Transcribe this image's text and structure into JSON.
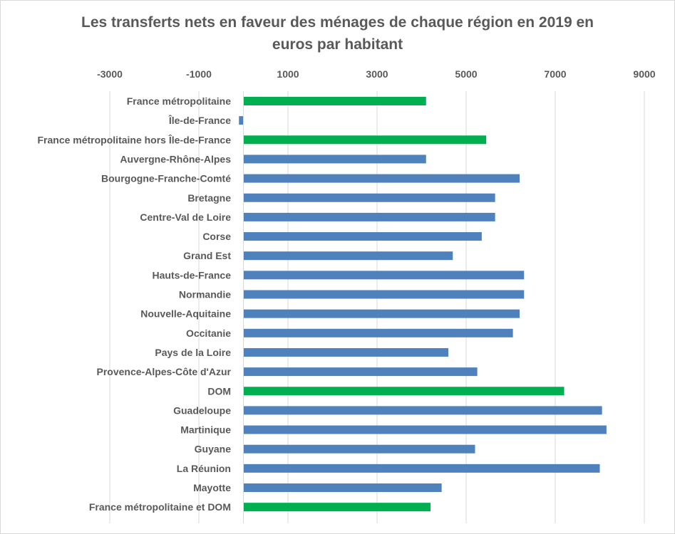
{
  "chart_data": {
    "type": "bar",
    "orientation": "horizontal",
    "title_lines": [
      "Les transferts nets en faveur des ménages de chaque région en 2019 en",
      "euros par habitant"
    ],
    "xlim": [
      -3000,
      9000
    ],
    "xticks": [
      -3000,
      -1000,
      1000,
      3000,
      5000,
      7000,
      9000
    ],
    "x_axis_position": "top",
    "grid": "vertical",
    "categories": [
      "France métropolitaine",
      "Île-de-France",
      "France métropolitaine hors Île-de-France",
      "Auvergne-Rhône-Alpes",
      "Bourgogne-Franche-Comté",
      "Bretagne",
      "Centre-Val de Loire",
      "Corse",
      "Grand Est",
      "Hauts-de-France",
      "Normandie",
      "Nouvelle-Aquitaine",
      "Occitanie",
      "Pays de la Loire",
      "Provence-Alpes-Côte d'Azur",
      "DOM",
      "Guadeloupe",
      "Martinique",
      "Guyane",
      "La Réunion",
      "Mayotte",
      "France métropolitaine et DOM"
    ],
    "values": [
      4100,
      -100,
      5450,
      4100,
      6200,
      5650,
      5650,
      5350,
      4700,
      6300,
      6300,
      6200,
      6050,
      4600,
      5250,
      7200,
      8050,
      8150,
      5200,
      8000,
      4450,
      4200
    ],
    "highlight": [
      true,
      false,
      true,
      false,
      false,
      false,
      false,
      false,
      false,
      false,
      false,
      false,
      false,
      false,
      false,
      true,
      false,
      false,
      false,
      false,
      false,
      true
    ],
    "colors": {
      "default": "#4f81bd",
      "highlight": "#00b050",
      "grid": "#d9d9d9",
      "text": "#595959"
    }
  }
}
